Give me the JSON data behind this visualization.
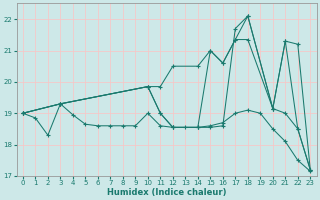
{
  "xlabel": "Humidex (Indice chaleur)",
  "xlim": [
    -0.5,
    23.5
  ],
  "ylim": [
    17,
    22.5
  ],
  "yticks": [
    17,
    18,
    19,
    20,
    21,
    22
  ],
  "xticks": [
    0,
    1,
    2,
    3,
    4,
    5,
    6,
    7,
    8,
    9,
    10,
    11,
    12,
    13,
    14,
    15,
    16,
    17,
    18,
    19,
    20,
    21,
    22,
    23
  ],
  "bg_color": "#cde8e8",
  "grid_color": "#f5c8c8",
  "line_color": "#1a7a6e",
  "series": [
    {
      "x": [
        0,
        1,
        2,
        3,
        4,
        5,
        6,
        7,
        8,
        9,
        10,
        11,
        12,
        13,
        14,
        15,
        16,
        17,
        18,
        19,
        20,
        21,
        22,
        23
      ],
      "y": [
        19.0,
        18.85,
        18.3,
        19.3,
        18.95,
        18.65,
        18.6,
        18.6,
        18.6,
        18.6,
        19.0,
        18.6,
        18.55,
        18.55,
        18.55,
        18.6,
        18.7,
        19.0,
        19.1,
        19.0,
        18.5,
        18.1,
        17.5,
        17.15
      ]
    },
    {
      "x": [
        0,
        3,
        10,
        11,
        12,
        14,
        15,
        16,
        17,
        18,
        20,
        21,
        22,
        23
      ],
      "y": [
        19.0,
        19.3,
        19.85,
        19.85,
        20.5,
        20.5,
        21.0,
        20.6,
        21.35,
        21.35,
        19.15,
        21.3,
        21.2,
        17.2
      ]
    },
    {
      "x": [
        0,
        3,
        10,
        11,
        12,
        14,
        15,
        16,
        17,
        18,
        20,
        21,
        22,
        23
      ],
      "y": [
        19.0,
        19.3,
        19.85,
        19.0,
        18.55,
        18.55,
        18.55,
        18.6,
        21.7,
        22.1,
        19.15,
        19.0,
        18.5,
        17.2
      ]
    },
    {
      "x": [
        0,
        3,
        10,
        11,
        12,
        14,
        15,
        16,
        17,
        18,
        20,
        21,
        22,
        23
      ],
      "y": [
        19.0,
        19.3,
        19.85,
        19.0,
        18.55,
        18.55,
        21.0,
        20.6,
        21.35,
        22.1,
        19.15,
        21.3,
        18.5,
        17.2
      ]
    }
  ]
}
